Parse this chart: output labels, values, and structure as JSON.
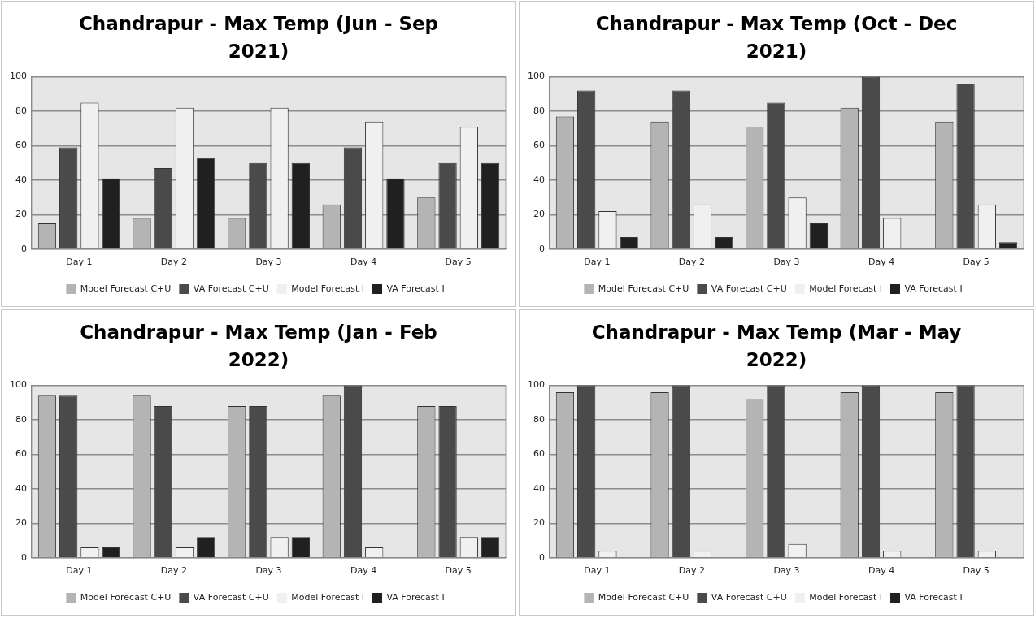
{
  "chart_data": [
    {
      "type": "bar",
      "title": "Chandrapur - Max Temp (Jun - Sep 2021)",
      "categories": [
        "Day 1",
        "Day 2",
        "Day 3",
        "Day 4",
        "Day 5"
      ],
      "ylim": [
        0,
        100
      ],
      "yticks": [
        0,
        20,
        40,
        60,
        80,
        100
      ],
      "grid": "y",
      "legend": "bottom",
      "series": [
        {
          "name": "Model Forecast C+U",
          "color": "#b4b4b4",
          "values": [
            15,
            18,
            18,
            26,
            30
          ]
        },
        {
          "name": "VA Forecast C+U",
          "color": "#4a4a4a",
          "values": [
            59,
            47,
            50,
            59,
            50
          ]
        },
        {
          "name": "Model Forecast I",
          "color": "#f0f0f0",
          "values": [
            85,
            82,
            82,
            74,
            71
          ]
        },
        {
          "name": "VA Forecast I",
          "color": "#202020",
          "values": [
            41,
            53,
            50,
            41,
            50
          ]
        }
      ]
    },
    {
      "type": "bar",
      "title": "Chandrapur - Max Temp (Oct - Dec 2021)",
      "categories": [
        "Day 1",
        "Day 2",
        "Day 3",
        "Day 4",
        "Day 5"
      ],
      "ylim": [
        0,
        100
      ],
      "yticks": [
        0,
        20,
        40,
        60,
        80,
        100
      ],
      "grid": "y",
      "legend": "bottom",
      "series": [
        {
          "name": "Model Forecast C+U",
          "color": "#b4b4b4",
          "values": [
            77,
            74,
            71,
            82,
            74
          ]
        },
        {
          "name": "VA Forecast C+U",
          "color": "#4a4a4a",
          "values": [
            92,
            92,
            85,
            100,
            96
          ]
        },
        {
          "name": "Model Forecast I",
          "color": "#f0f0f0",
          "values": [
            22,
            26,
            30,
            18,
            26
          ]
        },
        {
          "name": "VA Forecast I",
          "color": "#202020",
          "values": [
            7,
            7,
            15,
            0,
            4
          ]
        }
      ]
    },
    {
      "type": "bar",
      "title": "Chandrapur - Max Temp (Jan - Feb 2022)",
      "categories": [
        "Day 1",
        "Day 2",
        "Day 3",
        "Day 4",
        "Day 5"
      ],
      "ylim": [
        0,
        100
      ],
      "yticks": [
        0,
        20,
        40,
        60,
        80,
        100
      ],
      "grid": "y",
      "legend": "bottom",
      "series": [
        {
          "name": "Model Forecast C+U",
          "color": "#b4b4b4",
          "values": [
            94,
            94,
            88,
            94,
            88
          ]
        },
        {
          "name": "VA Forecast C+U",
          "color": "#4a4a4a",
          "values": [
            94,
            88,
            88,
            100,
            88
          ]
        },
        {
          "name": "Model Forecast I",
          "color": "#f0f0f0",
          "values": [
            6,
            6,
            12,
            6,
            12
          ]
        },
        {
          "name": "VA Forecast I",
          "color": "#202020",
          "values": [
            6,
            12,
            12,
            0,
            12
          ]
        }
      ]
    },
    {
      "type": "bar",
      "title": "Chandrapur - Max Temp (Mar - May 2022)",
      "categories": [
        "Day 1",
        "Day 2",
        "Day 3",
        "Day 4",
        "Day 5"
      ],
      "ylim": [
        0,
        100
      ],
      "yticks": [
        0,
        20,
        40,
        60,
        80,
        100
      ],
      "grid": "y",
      "legend": "bottom",
      "series": [
        {
          "name": "Model Forecast C+U",
          "color": "#b4b4b4",
          "values": [
            96,
            96,
            92,
            96,
            96
          ]
        },
        {
          "name": "VA Forecast C+U",
          "color": "#4a4a4a",
          "values": [
            100,
            100,
            100,
            100,
            100
          ]
        },
        {
          "name": "Model Forecast I",
          "color": "#f0f0f0",
          "values": [
            4,
            4,
            8,
            4,
            4
          ]
        },
        {
          "name": "VA Forecast I",
          "color": "#202020",
          "values": [
            0,
            0,
            0,
            0,
            0
          ]
        }
      ]
    }
  ]
}
